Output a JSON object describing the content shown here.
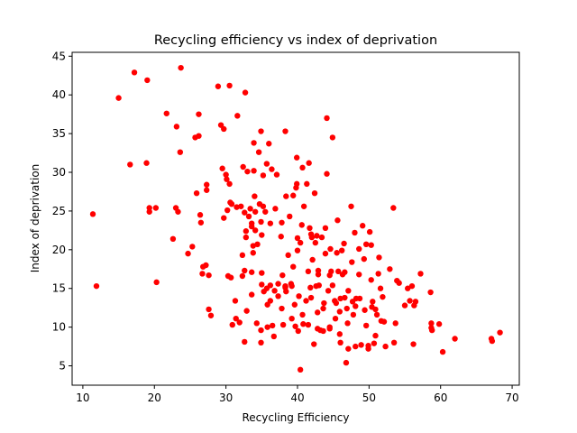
{
  "chart_data": {
    "type": "scatter",
    "title": "Recycling efficiency vs index of deprivation",
    "xlabel": "Recycling Efficiency",
    "ylabel": "Index of deprivation",
    "xlim": [
      8.5,
      71
    ],
    "ylim": [
      2.5,
      45.5
    ],
    "xticks": [
      10,
      20,
      30,
      40,
      50,
      60,
      70
    ],
    "yticks": [
      5,
      10,
      15,
      20,
      25,
      30,
      35,
      40,
      45
    ],
    "grid": false,
    "legend": "none",
    "marker_color": "#ff0000",
    "series": [
      {
        "points": [
          [
            11.4,
            24.6
          ],
          [
            11.9,
            15.3
          ],
          [
            15.0,
            39.6
          ],
          [
            16.6,
            31.0
          ],
          [
            17.2,
            42.9
          ],
          [
            18.9,
            31.2
          ],
          [
            19.0,
            41.9
          ],
          [
            19.3,
            25.4
          ],
          [
            19.3,
            24.9
          ],
          [
            20.2,
            25.4
          ],
          [
            20.3,
            15.8
          ],
          [
            21.7,
            37.6
          ],
          [
            22.6,
            21.4
          ],
          [
            23.0,
            25.4
          ],
          [
            23.1,
            35.9
          ],
          [
            23.3,
            24.9
          ],
          [
            23.6,
            32.6
          ],
          [
            23.7,
            43.5
          ],
          [
            24.7,
            19.5
          ],
          [
            25.3,
            20.4
          ],
          [
            25.7,
            34.5
          ],
          [
            25.9,
            27.3
          ],
          [
            26.2,
            37.5
          ],
          [
            26.2,
            34.7
          ],
          [
            26.4,
            24.5
          ],
          [
            26.5,
            23.5
          ],
          [
            26.8,
            17.8
          ],
          [
            26.7,
            16.9
          ],
          [
            27.2,
            18.0
          ],
          [
            27.3,
            27.7
          ],
          [
            27.3,
            28.4
          ],
          [
            27.6,
            16.7
          ],
          [
            27.6,
            12.3
          ],
          [
            27.9,
            11.5
          ],
          [
            28.9,
            41.1
          ],
          [
            29.3,
            36.1
          ],
          [
            29.7,
            35.6
          ],
          [
            29.5,
            30.5
          ],
          [
            29.7,
            24.1
          ],
          [
            30.0,
            29.7
          ],
          [
            30.1,
            29.1
          ],
          [
            30.2,
            25.1
          ],
          [
            30.3,
            16.6
          ],
          [
            30.5,
            41.2
          ],
          [
            30.5,
            28.5
          ],
          [
            30.6,
            26.1
          ],
          [
            30.8,
            25.9
          ],
          [
            30.7,
            16.4
          ],
          [
            30.9,
            10.3
          ],
          [
            31.4,
            11.1
          ],
          [
            31.3,
            13.4
          ],
          [
            31.5,
            25.5
          ],
          [
            31.6,
            37.3
          ],
          [
            31.9,
            10.6
          ],
          [
            32.1,
            25.6
          ],
          [
            32.3,
            16.6
          ],
          [
            32.3,
            19.3
          ],
          [
            32.4,
            30.7
          ],
          [
            32.6,
            17.3
          ],
          [
            32.7,
            40.3
          ],
          [
            32.6,
            24.8
          ],
          [
            32.6,
            8.1
          ],
          [
            32.8,
            21.6
          ],
          [
            32.9,
            12.1
          ],
          [
            32.8,
            22.4
          ],
          [
            33.0,
            30.1
          ],
          [
            33.2,
            24.3
          ],
          [
            33.4,
            25.3
          ],
          [
            33.6,
            23.4
          ],
          [
            33.6,
            23.0
          ],
          [
            33.6,
            17.1
          ],
          [
            33.6,
            14.2
          ],
          [
            33.8,
            20.5
          ],
          [
            33.8,
            19.6
          ],
          [
            33.9,
            33.8
          ],
          [
            33.9,
            30.2
          ],
          [
            34.0,
            26.9
          ],
          [
            34.1,
            24.9
          ],
          [
            34.1,
            22.5
          ],
          [
            34.4,
            20.7
          ],
          [
            34.3,
            10.5
          ],
          [
            34.6,
            32.6
          ],
          [
            34.7,
            25.9
          ],
          [
            34.9,
            35.3
          ],
          [
            34.9,
            23.6
          ],
          [
            35.0,
            21.9
          ],
          [
            35.0,
            17.0
          ],
          [
            35.0,
            15.5
          ],
          [
            34.9,
            9.6
          ],
          [
            34.9,
            8.0
          ],
          [
            35.2,
            29.6
          ],
          [
            35.2,
            25.6
          ],
          [
            35.3,
            14.6
          ],
          [
            35.5,
            24.9
          ],
          [
            35.7,
            31.1
          ],
          [
            35.8,
            12.9
          ],
          [
            35.8,
            10.0
          ],
          [
            35.7,
            15.0
          ],
          [
            36.0,
            33.7
          ],
          [
            36.2,
            23.4
          ],
          [
            36.2,
            15.4
          ],
          [
            36.2,
            13.4
          ],
          [
            36.4,
            30.4
          ],
          [
            36.5,
            10.2
          ],
          [
            36.7,
            8.8
          ],
          [
            36.9,
            25.3
          ],
          [
            36.8,
            14.7
          ],
          [
            37.1,
            29.7
          ],
          [
            37.3,
            15.6
          ],
          [
            37.3,
            14.0
          ],
          [
            37.7,
            21.7
          ],
          [
            37.8,
            23.5
          ],
          [
            37.8,
            12.4
          ],
          [
            37.9,
            16.7
          ],
          [
            38.0,
            10.3
          ],
          [
            38.3,
            35.3
          ],
          [
            38.3,
            15.1
          ],
          [
            38.3,
            15.3
          ],
          [
            38.4,
            14.6
          ],
          [
            38.3,
            15.2
          ],
          [
            38.4,
            26.9
          ],
          [
            38.7,
            19.3
          ],
          [
            38.9,
            24.3
          ],
          [
            39.2,
            11.1
          ],
          [
            39.1,
            15.6
          ],
          [
            39.2,
            15.3
          ],
          [
            39.4,
            17.8
          ],
          [
            39.4,
            27.0
          ],
          [
            39.6,
            12.9
          ],
          [
            39.7,
            10.1
          ],
          [
            39.8,
            28.0
          ],
          [
            39.9,
            28.5
          ],
          [
            39.9,
            31.9
          ],
          [
            40.0,
            21.5
          ],
          [
            40.0,
            19.9
          ],
          [
            40.1,
            9.5
          ],
          [
            40.2,
            14.0
          ],
          [
            40.4,
            20.9
          ],
          [
            40.7,
            11.6
          ],
          [
            40.4,
            4.5
          ],
          [
            40.6,
            23.2
          ],
          [
            40.7,
            30.6
          ],
          [
            40.8,
            10.4
          ],
          [
            40.9,
            25.6
          ],
          [
            41.2,
            13.4
          ],
          [
            41.3,
            28.5
          ],
          [
            41.6,
            31.2
          ],
          [
            41.5,
            17.2
          ],
          [
            41.5,
            10.3
          ],
          [
            41.7,
            22.8
          ],
          [
            41.8,
            15.1
          ],
          [
            41.9,
            13.8
          ],
          [
            41.9,
            22.0
          ],
          [
            42.0,
            21.6
          ],
          [
            42.1,
            18.7
          ],
          [
            42.3,
            7.8
          ],
          [
            42.5,
            20.9
          ],
          [
            42.6,
            15.3
          ],
          [
            42.7,
            21.8
          ],
          [
            42.4,
            27.3
          ],
          [
            42.8,
            11.9
          ],
          [
            42.8,
            9.8
          ],
          [
            42.9,
            17.3
          ],
          [
            42.9,
            16.8
          ],
          [
            43.0,
            15.4
          ],
          [
            43.2,
            9.6
          ],
          [
            43.4,
            21.6
          ],
          [
            43.6,
            12.4
          ],
          [
            43.7,
            13.1
          ],
          [
            43.6,
            9.5
          ],
          [
            43.9,
            22.8
          ],
          [
            43.9,
            19.5
          ],
          [
            44.1,
            29.8
          ],
          [
            44.1,
            37.0
          ],
          [
            44.3,
            14.7
          ],
          [
            44.5,
            10.0
          ],
          [
            44.5,
            9.8
          ],
          [
            44.5,
            16.7
          ],
          [
            44.6,
            20.1
          ],
          [
            44.7,
            17.2
          ],
          [
            44.9,
            34.5
          ],
          [
            44.9,
            15.4
          ],
          [
            45.2,
            13.4
          ],
          [
            45.3,
            11.1
          ],
          [
            45.4,
            13.1
          ],
          [
            45.5,
            19.6
          ],
          [
            45.6,
            23.8
          ],
          [
            45.7,
            17.2
          ],
          [
            45.9,
            12.0
          ],
          [
            45.9,
            9.1
          ],
          [
            46.0,
            13.7
          ],
          [
            46.0,
            8.0
          ],
          [
            46.2,
            19.9
          ],
          [
            46.3,
            16.8
          ],
          [
            46.6,
            17.1
          ],
          [
            46.5,
            20.8
          ],
          [
            46.6,
            13.8
          ],
          [
            46.9,
            12.4
          ],
          [
            46.8,
            5.4
          ],
          [
            47.0,
            10.5
          ],
          [
            47.1,
            14.7
          ],
          [
            47.1,
            7.2
          ],
          [
            47.5,
            25.6
          ],
          [
            47.6,
            18.4
          ],
          [
            47.7,
            13.3
          ],
          [
            47.8,
            11.6
          ],
          [
            48.0,
            22.2
          ],
          [
            48.1,
            12.7
          ],
          [
            48.1,
            7.5
          ],
          [
            48.2,
            13.7
          ],
          [
            48.6,
            20.1
          ],
          [
            48.6,
            16.8
          ],
          [
            48.7,
            13.7
          ],
          [
            48.9,
            7.7
          ],
          [
            49.1,
            23.1
          ],
          [
            49.3,
            18.8
          ],
          [
            49.4,
            12.2
          ],
          [
            49.6,
            20.7
          ],
          [
            49.6,
            10.2
          ],
          [
            49.9,
            7.6
          ],
          [
            49.9,
            7.2
          ],
          [
            50.1,
            22.3
          ],
          [
            50.3,
            20.6
          ],
          [
            50.3,
            16.1
          ],
          [
            50.4,
            12.6
          ],
          [
            50.5,
            13.3
          ],
          [
            50.7,
            7.9
          ],
          [
            50.9,
            8.9
          ],
          [
            50.9,
            12.3
          ],
          [
            51.1,
            11.6
          ],
          [
            51.3,
            16.9
          ],
          [
            51.4,
            19.0
          ],
          [
            51.6,
            15.0
          ],
          [
            51.7,
            10.8
          ],
          [
            51.9,
            13.9
          ],
          [
            52.1,
            10.7
          ],
          [
            52.3,
            7.5
          ],
          [
            52.9,
            17.5
          ],
          [
            53.4,
            25.4
          ],
          [
            53.5,
            8.0
          ],
          [
            53.7,
            10.5
          ],
          [
            53.9,
            16.0
          ],
          [
            54.2,
            15.7
          ],
          [
            55.0,
            12.8
          ],
          [
            55.4,
            15.0
          ],
          [
            55.7,
            13.4
          ],
          [
            56.0,
            15.3
          ],
          [
            56.2,
            7.8
          ],
          [
            56.3,
            12.8
          ],
          [
            56.5,
            13.3
          ],
          [
            57.2,
            16.9
          ],
          [
            58.6,
            14.5
          ],
          [
            58.7,
            10.5
          ],
          [
            58.7,
            9.9
          ],
          [
            58.8,
            9.6
          ],
          [
            59.8,
            10.4
          ],
          [
            60.3,
            6.8
          ],
          [
            62.0,
            8.5
          ],
          [
            67.1,
            8.5
          ],
          [
            67.2,
            8.2
          ],
          [
            68.3,
            9.3
          ]
        ]
      }
    ]
  }
}
